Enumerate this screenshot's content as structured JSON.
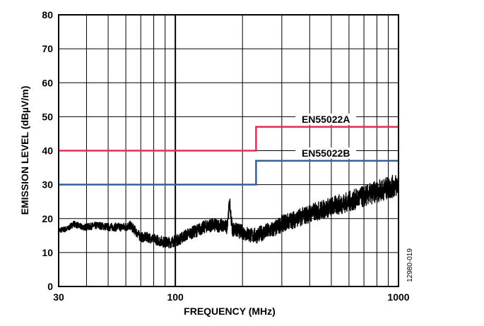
{
  "chart_data": {
    "type": "line",
    "title": "",
    "xlabel": "FREQUENCY (MHz)",
    "ylabel": "EMISSION LEVEL (dBµV/m)",
    "xscale": "log",
    "xlim": [
      30,
      1000
    ],
    "ylim": [
      0,
      80
    ],
    "x_ticks": [
      30,
      100,
      1000
    ],
    "x_tick_labels": [
      "30",
      "100",
      "1000"
    ],
    "y_ticks": [
      0,
      10,
      20,
      30,
      40,
      50,
      60,
      70,
      80
    ],
    "y_tick_labels": [
      "0",
      "10",
      "20",
      "30",
      "40",
      "50",
      "60",
      "70",
      "80"
    ],
    "grid": true,
    "figure_id": "12980-019",
    "limit_lines": [
      {
        "name": "EN55022A",
        "color": "#e0304f",
        "x": [
          30,
          230,
          230,
          1000
        ],
        "y": [
          40,
          40,
          47,
          47
        ]
      },
      {
        "name": "EN55022B",
        "color": "#3a5f96",
        "x": [
          30,
          230,
          230,
          1000
        ],
        "y": [
          30,
          30,
          37,
          37
        ]
      }
    ],
    "series": [
      {
        "color": "#000000",
        "x": [
          30,
          33,
          35,
          38,
          40,
          45,
          50,
          55,
          60,
          63,
          70,
          75,
          80,
          85,
          90,
          95,
          100,
          105,
          110,
          120,
          130,
          140,
          150,
          160,
          170,
          175,
          180,
          190,
          200,
          210,
          220,
          230,
          250,
          280,
          300,
          350,
          400,
          450,
          500,
          600,
          700,
          800,
          900,
          1000
        ],
        "y": [
          16.5,
          17,
          18.5,
          17.5,
          17.5,
          18,
          17.5,
          17.5,
          17.5,
          18,
          14.5,
          14.5,
          14,
          13.5,
          13,
          13,
          13.5,
          14,
          15,
          16,
          17,
          18,
          18,
          18,
          17.5,
          24.5,
          17,
          16.5,
          16,
          15.5,
          15,
          15,
          16,
          17,
          18.5,
          20,
          21.5,
          22.5,
          23.5,
          25,
          26.5,
          28,
          29,
          30
        ]
      }
    ]
  }
}
